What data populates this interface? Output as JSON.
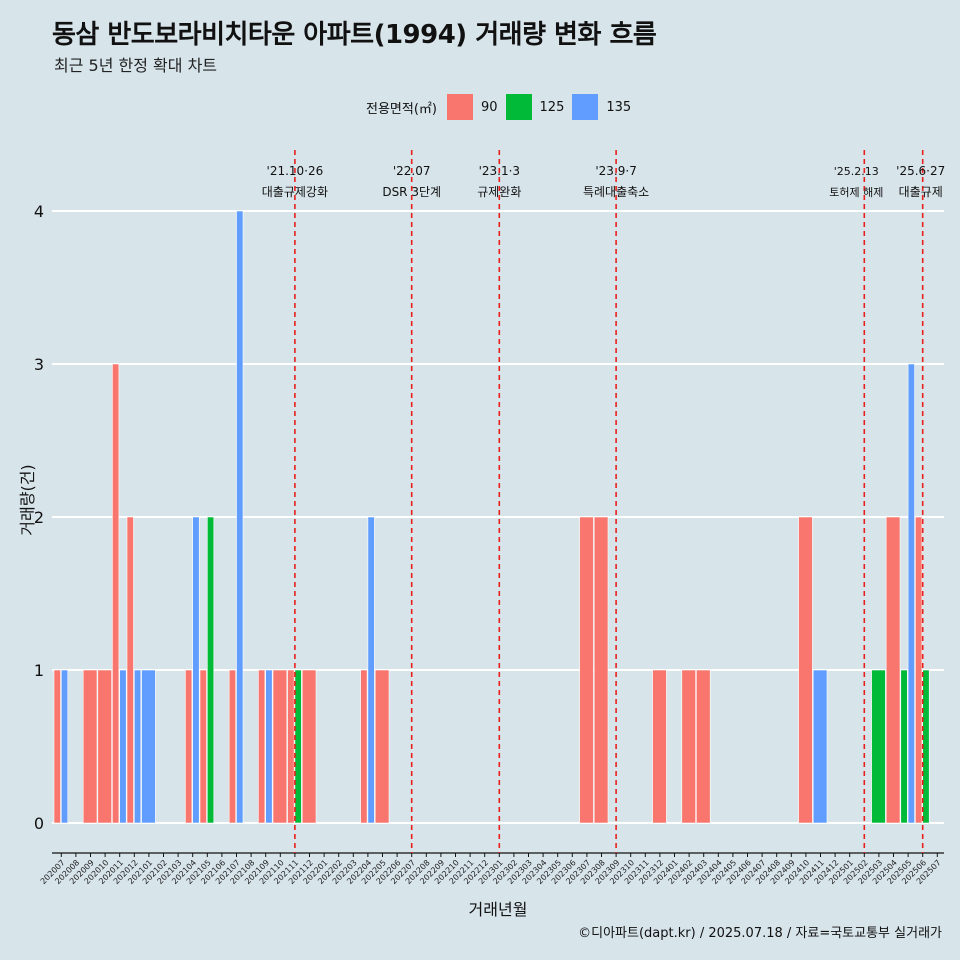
{
  "title": "동삼 반도보라비치타운 아파트(1994) 거래량 변화 흐름",
  "subtitle": "최근 5년 한정 확대 차트",
  "caption": "©디아파트(dapt.kr) / 2025.07.18 / 자료=국토교통부 실거래가",
  "legend": {
    "title": "전용면적(㎡)",
    "items": [
      {
        "label": "90",
        "color": "#f8766d"
      },
      {
        "label": "125",
        "color": "#00ba38"
      },
      {
        "label": "135",
        "color": "#619cff"
      }
    ]
  },
  "chart_data": {
    "type": "bar",
    "xlabel": "거래년월",
    "ylabel": "거래량(건)",
    "ylim": [
      0,
      4
    ],
    "yticks": [
      0,
      1,
      2,
      3,
      4
    ],
    "grid": "horizontal",
    "legend_position": "top",
    "categories": [
      "202007",
      "202008",
      "202009",
      "202010",
      "202011",
      "202012",
      "202101",
      "202102",
      "202103",
      "202104",
      "202105",
      "202106",
      "202107",
      "202108",
      "202109",
      "202110",
      "202111",
      "202112",
      "202201",
      "202202",
      "202203",
      "202204",
      "202205",
      "202206",
      "202207",
      "202208",
      "202209",
      "202210",
      "202211",
      "202212",
      "202301",
      "202302",
      "202303",
      "202304",
      "202305",
      "202306",
      "202307",
      "202308",
      "202309",
      "202310",
      "202311",
      "202312",
      "202401",
      "202402",
      "202403",
      "202404",
      "202405",
      "202406",
      "202407",
      "202408",
      "202409",
      "202410",
      "202411",
      "202412",
      "202501",
      "202502",
      "202503",
      "202504",
      "202505",
      "202506",
      "202507"
    ],
    "series": [
      {
        "name": "90",
        "color": "#f8766d",
        "values": [
          1,
          0,
          1,
          1,
          3,
          2,
          0,
          0,
          0,
          1,
          1,
          0,
          1,
          0,
          1,
          1,
          1,
          1,
          0,
          0,
          0,
          1,
          1,
          0,
          0,
          0,
          0,
          0,
          0,
          0,
          0,
          0,
          0,
          0,
          0,
          0,
          2,
          2,
          0,
          0,
          0,
          1,
          0,
          1,
          1,
          0,
          0,
          0,
          0,
          0,
          0,
          2,
          0,
          0,
          0,
          0,
          0,
          2,
          0,
          2,
          0
        ]
      },
      {
        "name": "125",
        "color": "#00ba38",
        "values": [
          0,
          0,
          0,
          0,
          0,
          0,
          0,
          0,
          0,
          0,
          2,
          0,
          0,
          0,
          0,
          0,
          1,
          0,
          0,
          0,
          0,
          0,
          0,
          0,
          0,
          0,
          0,
          0,
          0,
          0,
          0,
          0,
          0,
          0,
          0,
          0,
          0,
          0,
          0,
          0,
          0,
          0,
          0,
          0,
          0,
          0,
          0,
          0,
          0,
          0,
          0,
          0,
          0,
          0,
          0,
          0,
          1,
          0,
          1,
          1,
          0
        ]
      },
      {
        "name": "135",
        "color": "#619cff",
        "values": [
          1,
          0,
          0,
          0,
          1,
          1,
          1,
          0,
          0,
          2,
          0,
          0,
          4,
          0,
          1,
          0,
          0,
          0,
          0,
          0,
          0,
          2,
          0,
          0,
          0,
          0,
          0,
          0,
          0,
          0,
          0,
          0,
          0,
          0,
          0,
          0,
          0,
          0,
          0,
          0,
          0,
          0,
          0,
          0,
          0,
          0,
          0,
          0,
          0,
          0,
          0,
          0,
          1,
          0,
          0,
          0,
          0,
          0,
          3,
          0,
          0
        ]
      }
    ],
    "events": [
      {
        "month": "202111",
        "date": "'21.10·26",
        "label": "대출규제강화"
      },
      {
        "month": "202207",
        "date": "'22.07",
        "label": "DSR 3단계"
      },
      {
        "month": "202301",
        "date": "'23.1·3",
        "label": "규제완화"
      },
      {
        "month": "202309",
        "date": "'23.9·7",
        "label": "특례대출축소"
      },
      {
        "month": "202502",
        "date": "'25.2.13",
        "label": "토허제 해제"
      },
      {
        "month": "202506",
        "date": "'25.6·27",
        "label": "대출규제"
      }
    ]
  }
}
